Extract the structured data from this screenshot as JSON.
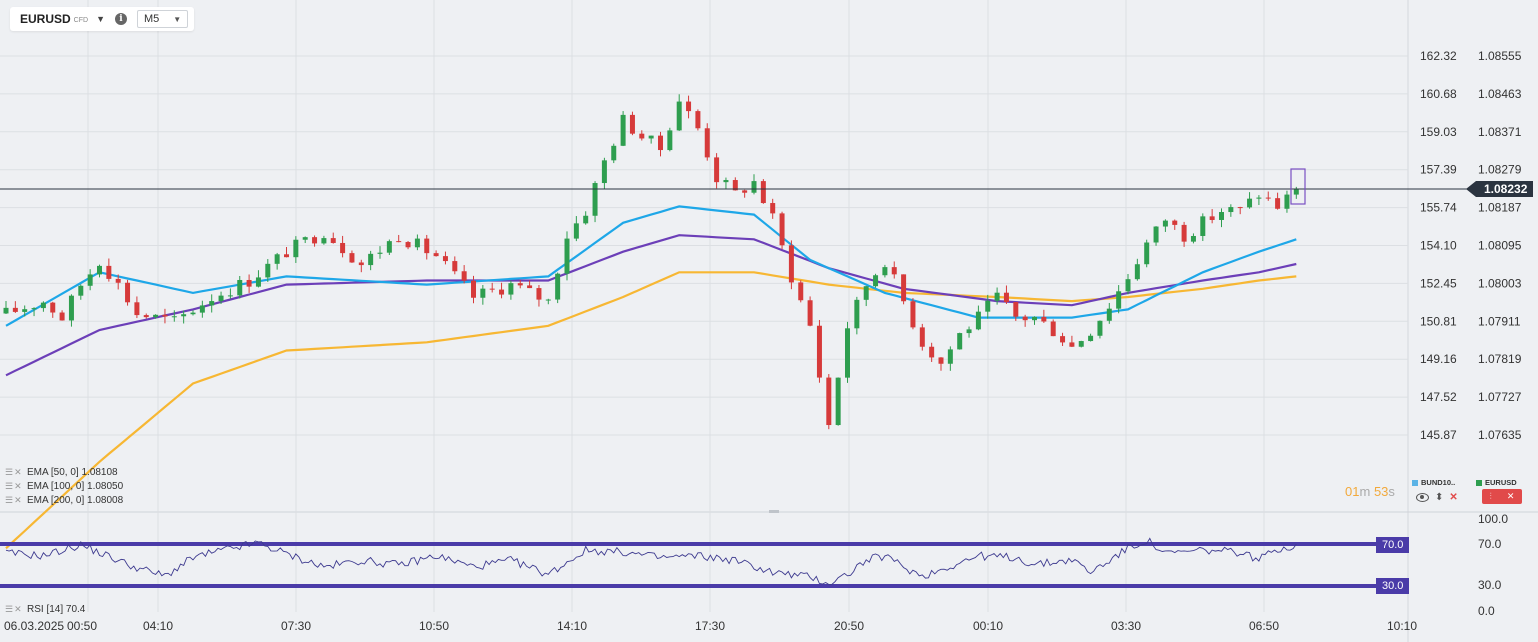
{
  "toolbar": {
    "symbol": "EURUSD",
    "symbol_tag": "CFD",
    "timeframe": "M5"
  },
  "indicators": [
    {
      "label": "EMA [50, 0] 1.08108"
    },
    {
      "label": "EMA [100, 0] 1.08050"
    },
    {
      "label": "EMA [200, 0] 1.08008"
    }
  ],
  "rsi_label": "RSI [14] 70.4",
  "countdown": {
    "min": "01",
    "min_unit": "m",
    "sec": "53",
    "sec_unit": "s"
  },
  "compare_legend": {
    "left": "BUND10..",
    "right": "EURUSD"
  },
  "current_price": "1.08232",
  "rsi_levels": {
    "upper": "70.0",
    "lower": "30.0"
  },
  "colors": {
    "ema50": "#1ea7e8",
    "ema100": "#6c3fb8",
    "ema200": "#f7b733",
    "bull": "#2e9e4f",
    "bear": "#d63a3a",
    "rsi_band": "#4a3ba8",
    "price_tag": "#2b3440"
  },
  "chart_data": {
    "type": "candlestick",
    "instrument": "EURUSD",
    "timeframe": "M5",
    "x_ticks": [
      "06.03.2025",
      "00:50",
      "04:10",
      "07:30",
      "10:50",
      "14:10",
      "17:30",
      "20:50",
      "00:10",
      "03:30",
      "06:50",
      "10:10"
    ],
    "y_left_ticks": [
      "162.32",
      "160.68",
      "159.03",
      "157.39",
      "155.74",
      "154.10",
      "152.45",
      "150.81",
      "149.16",
      "147.52",
      "145.87"
    ],
    "y_right_ticks": [
      "1.08555",
      "1.08463",
      "1.08371",
      "1.08279",
      "1.08187",
      "1.08095",
      "1.08003",
      "1.07911",
      "1.07819",
      "1.07727",
      "1.07635"
    ],
    "ylim": [
      1.0757,
      1.086
    ],
    "last_price": 1.08232,
    "price_path": [
      [
        0,
        1.0793
      ],
      [
        4,
        1.0796
      ],
      [
        6,
        1.0792
      ],
      [
        8,
        1.08
      ],
      [
        10,
        1.0806
      ],
      [
        12,
        1.08
      ],
      [
        14,
        1.0793
      ],
      [
        18,
        1.0791
      ],
      [
        22,
        1.0797
      ],
      [
        26,
        1.0801
      ],
      [
        30,
        1.0808
      ],
      [
        34,
        1.0813
      ],
      [
        38,
        1.0805
      ],
      [
        42,
        1.0812
      ],
      [
        46,
        1.0807
      ],
      [
        50,
        1.0797
      ],
      [
        54,
        1.08
      ],
      [
        58,
        1.0796
      ],
      [
        60,
        1.0812
      ],
      [
        62,
        1.0818
      ],
      [
        64,
        1.083
      ],
      [
        66,
        1.084
      ],
      [
        68,
        1.0836
      ],
      [
        70,
        1.0833
      ],
      [
        72,
        1.0845
      ],
      [
        74,
        1.0838
      ],
      [
        76,
        1.0826
      ],
      [
        78,
        1.0822
      ],
      [
        80,
        1.0825
      ],
      [
        82,
        1.0816
      ],
      [
        84,
        1.0802
      ],
      [
        86,
        1.079
      ],
      [
        88,
        1.0766
      ],
      [
        90,
        1.079
      ],
      [
        92,
        1.08
      ],
      [
        94,
        1.0806
      ],
      [
        96,
        1.0796
      ],
      [
        98,
        1.0786
      ],
      [
        100,
        1.0781
      ],
      [
        102,
        1.0788
      ],
      [
        104,
        1.0792
      ],
      [
        106,
        1.0797
      ],
      [
        108,
        1.0792
      ],
      [
        110,
        1.0792
      ],
      [
        112,
        1.0789
      ],
      [
        114,
        1.0785
      ],
      [
        116,
        1.0789
      ],
      [
        118,
        1.0795
      ],
      [
        120,
        1.0802
      ],
      [
        122,
        1.081
      ],
      [
        124,
        1.0816
      ],
      [
        126,
        1.0812
      ],
      [
        128,
        1.0815
      ],
      [
        130,
        1.0818
      ],
      [
        132,
        1.0818
      ],
      [
        134,
        1.0822
      ],
      [
        136,
        1.0819
      ],
      [
        138,
        1.0823
      ]
    ],
    "ema50": [
      [
        0,
        1.079
      ],
      [
        10,
        1.0803
      ],
      [
        20,
        1.0798
      ],
      [
        30,
        1.0802
      ],
      [
        45,
        1.08
      ],
      [
        58,
        1.0802
      ],
      [
        66,
        1.0815
      ],
      [
        72,
        1.0819
      ],
      [
        80,
        1.0817
      ],
      [
        86,
        1.0806
      ],
      [
        94,
        1.0798
      ],
      [
        104,
        1.0792
      ],
      [
        114,
        1.0792
      ],
      [
        120,
        1.0794
      ],
      [
        128,
        1.0803
      ],
      [
        134,
        1.0808
      ],
      [
        138,
        1.0811
      ]
    ],
    "ema100": [
      [
        0,
        1.0778
      ],
      [
        10,
        1.0789
      ],
      [
        20,
        1.0794
      ],
      [
        30,
        1.08
      ],
      [
        45,
        1.0801
      ],
      [
        58,
        1.0801
      ],
      [
        66,
        1.0808
      ],
      [
        72,
        1.0812
      ],
      [
        80,
        1.0811
      ],
      [
        88,
        1.0804
      ],
      [
        96,
        1.0799
      ],
      [
        106,
        1.0796
      ],
      [
        114,
        1.0795
      ],
      [
        120,
        1.0798
      ],
      [
        128,
        1.0801
      ],
      [
        134,
        1.0803
      ],
      [
        138,
        1.0805
      ]
    ],
    "ema200": [
      [
        0,
        1.0736
      ],
      [
        10,
        1.0757
      ],
      [
        20,
        1.0776
      ],
      [
        30,
        1.0784
      ],
      [
        45,
        1.0786
      ],
      [
        58,
        1.079
      ],
      [
        66,
        1.0797
      ],
      [
        72,
        1.0803
      ],
      [
        80,
        1.0803
      ],
      [
        88,
        1.08
      ],
      [
        96,
        1.0798
      ],
      [
        106,
        1.0797
      ],
      [
        114,
        1.0796
      ],
      [
        120,
        1.0797
      ],
      [
        128,
        1.0799
      ],
      [
        134,
        1.0801
      ],
      [
        138,
        1.0802
      ]
    ],
    "rsi": {
      "period": 14,
      "value": 70.4,
      "levels": [
        70.0,
        30.0
      ],
      "y_ticks": [
        "100.0",
        "70.0",
        "30.0",
        "0.0"
      ],
      "series": [
        [
          0,
          63
        ],
        [
          4,
          60
        ],
        [
          8,
          72
        ],
        [
          12,
          55
        ],
        [
          14,
          47
        ],
        [
          17,
          38
        ],
        [
          20,
          58
        ],
        [
          24,
          68
        ],
        [
          27,
          74
        ],
        [
          30,
          62
        ],
        [
          34,
          48
        ],
        [
          38,
          55
        ],
        [
          42,
          50
        ],
        [
          46,
          60
        ],
        [
          50,
          48
        ],
        [
          54,
          55
        ],
        [
          58,
          40
        ],
        [
          62,
          66
        ],
        [
          66,
          64
        ],
        [
          70,
          58
        ],
        [
          74,
          60
        ],
        [
          78,
          55
        ],
        [
          82,
          42
        ],
        [
          86,
          37
        ],
        [
          88,
          30
        ],
        [
          90,
          40
        ],
        [
          92,
          55
        ],
        [
          94,
          60
        ],
        [
          96,
          48
        ],
        [
          98,
          38
        ],
        [
          100,
          45
        ],
        [
          104,
          60
        ],
        [
          108,
          58
        ],
        [
          110,
          50
        ],
        [
          114,
          56
        ],
        [
          116,
          42
        ],
        [
          118,
          55
        ],
        [
          120,
          68
        ],
        [
          122,
          77
        ],
        [
          124,
          62
        ],
        [
          128,
          66
        ],
        [
          132,
          64
        ],
        [
          134,
          56
        ],
        [
          136,
          68
        ],
        [
          138,
          70.4
        ]
      ]
    }
  }
}
